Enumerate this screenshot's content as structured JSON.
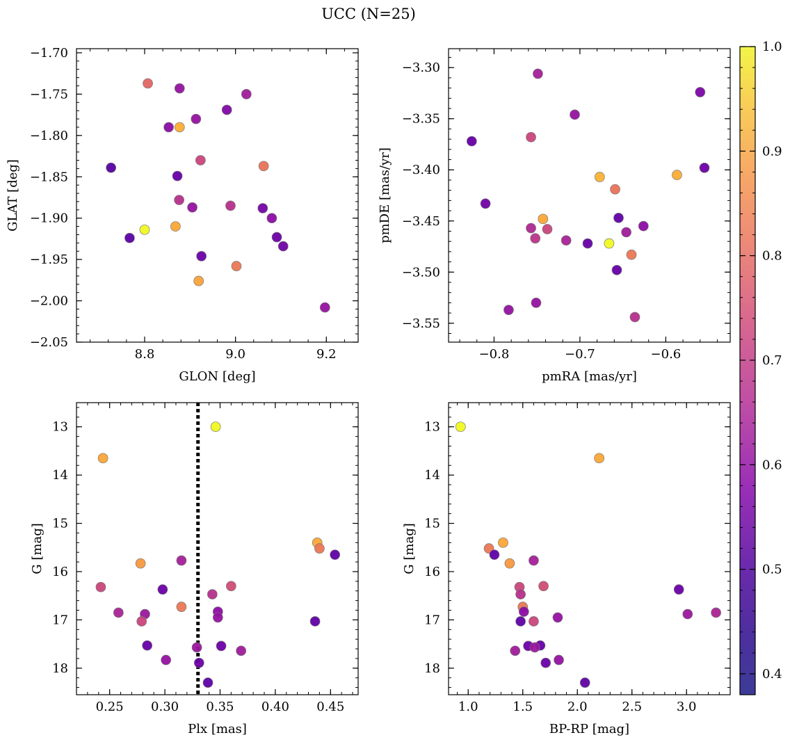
{
  "figure": {
    "title": "UCC (N=25)"
  },
  "colorbar": {
    "cmap": "plasma",
    "vmin": 0.38,
    "vmax": 1.0,
    "ticks": [
      0.4,
      0.5,
      0.6,
      0.7,
      0.8,
      0.9,
      1.0
    ],
    "tick_labels": [
      "0.4",
      "0.5",
      "0.6",
      "0.7",
      "0.8",
      "0.9",
      "1.0"
    ]
  },
  "chart_data": [
    {
      "type": "scatter",
      "xlabel": "GLON [deg]",
      "ylabel": "GLAT [deg]",
      "xlim": [
        8.65,
        9.27
      ],
      "ylim": [
        -2.05,
        -1.695
      ],
      "xticks": [
        8.8,
        9.0,
        9.2
      ],
      "xtick_labels": [
        "8.8",
        "9.0",
        "9.2"
      ],
      "yticks": [
        -2.05,
        -2.0,
        -1.95,
        -1.9,
        -1.85,
        -1.8,
        -1.75,
        -1.7
      ],
      "ytick_labels": [
        "−2.05",
        "−2.00",
        "−1.95",
        "−1.90",
        "−1.85",
        "−1.80",
        "−1.75",
        "−1.70"
      ],
      "points": [
        {
          "x": 8.807,
          "y": -1.737,
          "c": 0.72
        },
        {
          "x": 8.877,
          "y": -1.743,
          "c": 0.52
        },
        {
          "x": 9.024,
          "y": -1.75,
          "c": 0.54
        },
        {
          "x": 8.981,
          "y": -1.769,
          "c": 0.48
        },
        {
          "x": 8.913,
          "y": -1.78,
          "c": 0.52
        },
        {
          "x": 8.853,
          "y": -1.79,
          "c": 0.5
        },
        {
          "x": 8.877,
          "y": -1.79,
          "c": 0.87
        },
        {
          "x": 8.923,
          "y": -1.83,
          "c": 0.64
        },
        {
          "x": 9.062,
          "y": -1.837,
          "c": 0.75
        },
        {
          "x": 8.726,
          "y": -1.839,
          "c": 0.4
        },
        {
          "x": 8.872,
          "y": -1.849,
          "c": 0.43
        },
        {
          "x": 8.876,
          "y": -1.878,
          "c": 0.59
        },
        {
          "x": 8.905,
          "y": -1.887,
          "c": 0.52
        },
        {
          "x": 8.989,
          "y": -1.885,
          "c": 0.59
        },
        {
          "x": 9.06,
          "y": -1.888,
          "c": 0.46
        },
        {
          "x": 9.08,
          "y": -1.9,
          "c": 0.5
        },
        {
          "x": 8.868,
          "y": -1.91,
          "c": 0.86
        },
        {
          "x": 8.8,
          "y": -1.914,
          "c": 1.0
        },
        {
          "x": 8.767,
          "y": -1.924,
          "c": 0.41
        },
        {
          "x": 9.091,
          "y": -1.923,
          "c": 0.44
        },
        {
          "x": 9.105,
          "y": -1.934,
          "c": 0.45
        },
        {
          "x": 8.925,
          "y": -1.946,
          "c": 0.44
        },
        {
          "x": 9.002,
          "y": -1.958,
          "c": 0.76
        },
        {
          "x": 8.919,
          "y": -1.976,
          "c": 0.85
        },
        {
          "x": 9.197,
          "y": -2.008,
          "c": 0.52
        }
      ]
    },
    {
      "type": "scatter",
      "xlabel": "pmRA [mas/yr]",
      "ylabel": "pmDE [mas/yr]",
      "xlim": [
        -0.853,
        -0.525
      ],
      "ylim": [
        -3.5685,
        -3.2815
      ],
      "xticks": [
        -0.8,
        -0.7,
        -0.6
      ],
      "xtick_labels": [
        "−0.8",
        "−0.7",
        "−0.6"
      ],
      "yticks": [
        -3.55,
        -3.5,
        -3.45,
        -3.4,
        -3.35,
        -3.3
      ],
      "ytick_labels": [
        "−3.55",
        "−3.50",
        "−3.45",
        "−3.40",
        "−3.35",
        "−3.30"
      ],
      "points": [
        {
          "x": -0.749,
          "y": -3.306,
          "c": 0.55
        },
        {
          "x": -0.56,
          "y": -3.324,
          "c": 0.47
        },
        {
          "x": -0.706,
          "y": -3.346,
          "c": 0.52
        },
        {
          "x": -0.757,
          "y": -3.368,
          "c": 0.64
        },
        {
          "x": -0.826,
          "y": -3.372,
          "c": 0.43
        },
        {
          "x": -0.555,
          "y": -3.398,
          "c": 0.44
        },
        {
          "x": -0.587,
          "y": -3.405,
          "c": 0.87
        },
        {
          "x": -0.677,
          "y": -3.407,
          "c": 0.88
        },
        {
          "x": -0.659,
          "y": -3.419,
          "c": 0.75
        },
        {
          "x": -0.81,
          "y": -3.433,
          "c": 0.45
        },
        {
          "x": -0.743,
          "y": -3.448,
          "c": 0.86
        },
        {
          "x": -0.655,
          "y": -3.447,
          "c": 0.42
        },
        {
          "x": -0.626,
          "y": -3.455,
          "c": 0.5
        },
        {
          "x": -0.757,
          "y": -3.457,
          "c": 0.57
        },
        {
          "x": -0.738,
          "y": -3.458,
          "c": 0.64
        },
        {
          "x": -0.646,
          "y": -3.461,
          "c": 0.54
        },
        {
          "x": -0.752,
          "y": -3.467,
          "c": 0.6
        },
        {
          "x": -0.716,
          "y": -3.469,
          "c": 0.56
        },
        {
          "x": -0.691,
          "y": -3.472,
          "c": 0.43
        },
        {
          "x": -0.666,
          "y": -3.472,
          "c": 1.0
        },
        {
          "x": -0.64,
          "y": -3.483,
          "c": 0.76
        },
        {
          "x": -0.657,
          "y": -3.498,
          "c": 0.43
        },
        {
          "x": -0.751,
          "y": -3.53,
          "c": 0.52
        },
        {
          "x": -0.783,
          "y": -3.537,
          "c": 0.52
        },
        {
          "x": -0.636,
          "y": -3.544,
          "c": 0.59
        }
      ]
    },
    {
      "type": "scatter",
      "xlabel": "Plx [mas]",
      "ylabel": "G [mag]",
      "xlim": [
        0.22,
        0.475
      ],
      "ylim": [
        18.55,
        12.5
      ],
      "y_inverted": true,
      "xticks": [
        0.25,
        0.3,
        0.35,
        0.4,
        0.45
      ],
      "xtick_labels": [
        "0.25",
        "0.30",
        "0.35",
        "0.40",
        "0.45"
      ],
      "yticks": [
        13,
        14,
        15,
        16,
        17,
        18
      ],
      "ytick_labels": [
        "13",
        "14",
        "15",
        "16",
        "17",
        "18"
      ],
      "vline": {
        "x": 0.33,
        "style": "dotted"
      },
      "points": [
        {
          "x": 0.346,
          "y": 13.0,
          "c": 1.0
        },
        {
          "x": 0.244,
          "y": 13.65,
          "c": 0.86
        },
        {
          "x": 0.438,
          "y": 15.4,
          "c": 0.86
        },
        {
          "x": 0.44,
          "y": 15.52,
          "c": 0.76
        },
        {
          "x": 0.454,
          "y": 15.65,
          "c": 0.42
        },
        {
          "x": 0.315,
          "y": 15.77,
          "c": 0.55
        },
        {
          "x": 0.278,
          "y": 15.83,
          "c": 0.83
        },
        {
          "x": 0.242,
          "y": 16.32,
          "c": 0.64
        },
        {
          "x": 0.36,
          "y": 16.3,
          "c": 0.66
        },
        {
          "x": 0.298,
          "y": 16.37,
          "c": 0.44
        },
        {
          "x": 0.343,
          "y": 16.47,
          "c": 0.59
        },
        {
          "x": 0.315,
          "y": 16.73,
          "c": 0.76
        },
        {
          "x": 0.348,
          "y": 16.83,
          "c": 0.5
        },
        {
          "x": 0.258,
          "y": 16.85,
          "c": 0.56
        },
        {
          "x": 0.282,
          "y": 16.88,
          "c": 0.53
        },
        {
          "x": 0.348,
          "y": 16.95,
          "c": 0.52
        },
        {
          "x": 0.279,
          "y": 17.03,
          "c": 0.64
        },
        {
          "x": 0.436,
          "y": 17.03,
          "c": 0.42
        },
        {
          "x": 0.284,
          "y": 17.53,
          "c": 0.43
        },
        {
          "x": 0.351,
          "y": 17.54,
          "c": 0.44
        },
        {
          "x": 0.329,
          "y": 17.57,
          "c": 0.53
        },
        {
          "x": 0.369,
          "y": 17.64,
          "c": 0.54
        },
        {
          "x": 0.301,
          "y": 17.83,
          "c": 0.52
        },
        {
          "x": 0.331,
          "y": 17.89,
          "c": 0.44
        },
        {
          "x": 0.339,
          "y": 18.3,
          "c": 0.42
        }
      ]
    },
    {
      "type": "scatter",
      "xlabel": "BP-RP [mag]",
      "ylabel": "G [mag]",
      "xlim": [
        0.82,
        3.4
      ],
      "ylim": [
        18.55,
        12.5
      ],
      "y_inverted": true,
      "xticks": [
        1.0,
        1.5,
        2.0,
        2.5,
        3.0
      ],
      "xtick_labels": [
        "1.0",
        "1.5",
        "2.0",
        "2.5",
        "3.0"
      ],
      "yticks": [
        13,
        14,
        15,
        16,
        17,
        18
      ],
      "ytick_labels": [
        "13",
        "14",
        "15",
        "16",
        "17",
        "18"
      ],
      "points": [
        {
          "x": 0.93,
          "y": 13.0,
          "c": 1.0
        },
        {
          "x": 2.2,
          "y": 13.65,
          "c": 0.86
        },
        {
          "x": 1.32,
          "y": 15.4,
          "c": 0.86
        },
        {
          "x": 1.19,
          "y": 15.52,
          "c": 0.76
        },
        {
          "x": 1.24,
          "y": 15.65,
          "c": 0.42
        },
        {
          "x": 1.6,
          "y": 15.77,
          "c": 0.55
        },
        {
          "x": 1.38,
          "y": 15.83,
          "c": 0.83
        },
        {
          "x": 1.47,
          "y": 16.32,
          "c": 0.64
        },
        {
          "x": 1.69,
          "y": 16.3,
          "c": 0.66
        },
        {
          "x": 2.93,
          "y": 16.37,
          "c": 0.44
        },
        {
          "x": 1.48,
          "y": 16.47,
          "c": 0.59
        },
        {
          "x": 1.5,
          "y": 16.73,
          "c": 0.76
        },
        {
          "x": 1.51,
          "y": 16.83,
          "c": 0.5
        },
        {
          "x": 3.27,
          "y": 16.85,
          "c": 0.56
        },
        {
          "x": 3.01,
          "y": 16.88,
          "c": 0.53
        },
        {
          "x": 1.82,
          "y": 16.95,
          "c": 0.52
        },
        {
          "x": 1.6,
          "y": 17.03,
          "c": 0.64
        },
        {
          "x": 1.48,
          "y": 17.03,
          "c": 0.42
        },
        {
          "x": 1.66,
          "y": 17.53,
          "c": 0.43
        },
        {
          "x": 1.55,
          "y": 17.54,
          "c": 0.44
        },
        {
          "x": 1.61,
          "y": 17.57,
          "c": 0.53
        },
        {
          "x": 1.43,
          "y": 17.64,
          "c": 0.54
        },
        {
          "x": 1.83,
          "y": 17.83,
          "c": 0.52
        },
        {
          "x": 1.71,
          "y": 17.89,
          "c": 0.44
        },
        {
          "x": 2.07,
          "y": 18.3,
          "c": 0.42
        }
      ]
    }
  ]
}
